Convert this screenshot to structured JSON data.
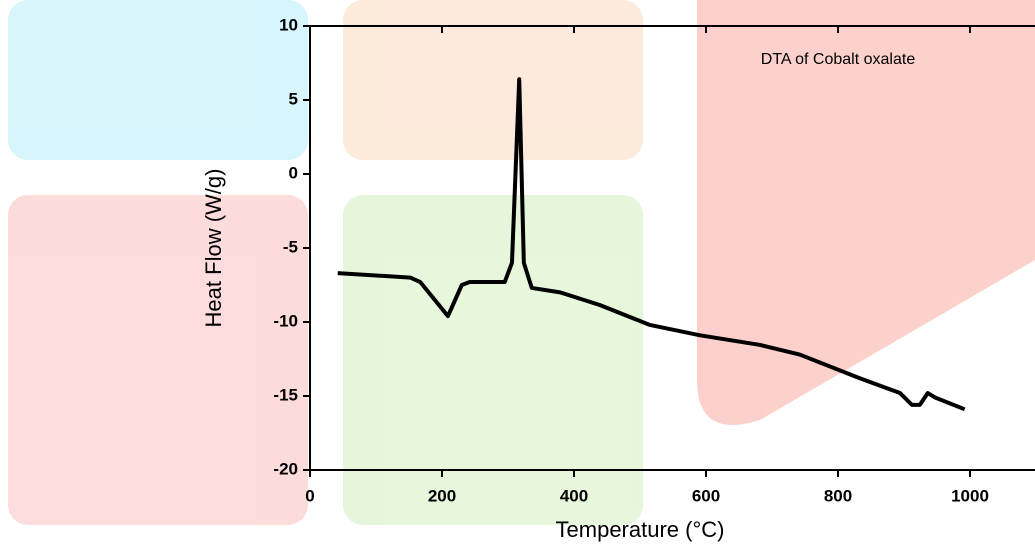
{
  "chart_data": {
    "type": "line",
    "title": "DTA of Cobalt oxalate",
    "x_label": "Temperature (°C)",
    "y_label": "Heat Flow (W/g)",
    "x": [
      42,
      152,
      167,
      209,
      230,
      242,
      295,
      306,
      317,
      324,
      336,
      379,
      439,
      515,
      591,
      682,
      742,
      833,
      894,
      912,
      924,
      936,
      947,
      992
    ],
    "values": [
      -6.7,
      -7.0,
      -7.3,
      -9.6,
      -7.5,
      -7.3,
      -7.3,
      -6.0,
      6.4,
      -6.0,
      -7.7,
      -8.0,
      -8.85,
      -10.2,
      -10.9,
      -11.55,
      -12.2,
      -13.8,
      -14.8,
      -15.6,
      -15.6,
      -14.8,
      -15.1,
      -15.9
    ],
    "color": "#000000",
    "xlim": [
      0,
      1100
    ],
    "ylim": [
      -20,
      10
    ],
    "xticks": [
      0,
      200,
      400,
      600,
      800,
      1000
    ],
    "yticks": [
      -20,
      -15,
      -10,
      -5,
      0,
      5,
      10
    ]
  }
}
